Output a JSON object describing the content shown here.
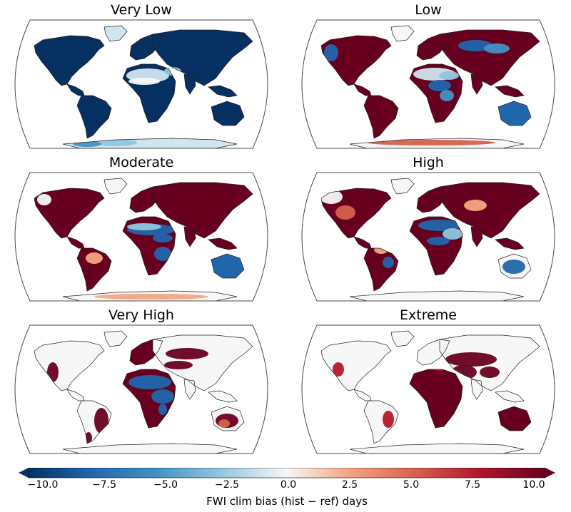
{
  "colors": {
    "map_outline": "#4a4a4a",
    "coast": "#222222",
    "neutral": "#f7f7f7",
    "colormap": "RdBu_r"
  },
  "panels": [
    {
      "title": "Very Low",
      "pattern": "very-low"
    },
    {
      "title": "Low",
      "pattern": "low"
    },
    {
      "title": "Moderate",
      "pattern": "moderate"
    },
    {
      "title": "High",
      "pattern": "high"
    },
    {
      "title": "Very High",
      "pattern": "very-high"
    },
    {
      "title": "Extreme",
      "pattern": "extreme"
    }
  ],
  "colorbar": {
    "label": "FWI clim bias (hist − ref) days",
    "min": -10.0,
    "max": 10.0,
    "extend": "both",
    "ticks": [
      "−10.0",
      "−7.5",
      "−5.0",
      "−2.5",
      "0.0",
      "2.5",
      "5.0",
      "7.5",
      "10.0"
    ]
  }
}
